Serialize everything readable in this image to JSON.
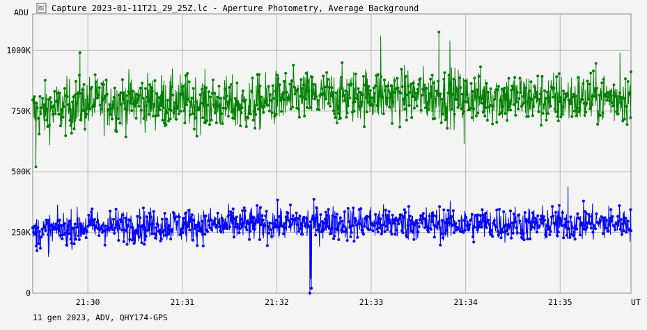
{
  "window": {
    "title": "Capture 2023-01-11T21_29_25Z.lc - Aperture Photometry, Average Background",
    "icon": "lightcurve-icon"
  },
  "footer": {
    "text": "11 gen 2023, ADV, QHY174-GPS"
  },
  "chart_data": {
    "type": "line",
    "title": "Capture 2023-01-11T21_29_25Z.lc - Aperture Photometry, Average Background",
    "ylabel": "ADU",
    "xlabel": "UT",
    "x_range_minutes": [
      "21:29:25",
      "21:35:45"
    ],
    "ylim": [
      0,
      1150000
    ],
    "y_ticks": [
      {
        "value": 0,
        "label": "0"
      },
      {
        "value": 250000,
        "label": "250K"
      },
      {
        "value": 500000,
        "label": "500K"
      },
      {
        "value": 750000,
        "label": "750K"
      },
      {
        "value": 1000000,
        "label": "1000K"
      }
    ],
    "x_ticks": [
      {
        "value": "21:30",
        "label": "21:30"
      },
      {
        "value": "21:31",
        "label": "21:31"
      },
      {
        "value": "21:32",
        "label": "21:32"
      },
      {
        "value": "21:33",
        "label": "21:33"
      },
      {
        "value": "21:34",
        "label": "21:34"
      },
      {
        "value": "21:35",
        "label": "21:35"
      }
    ],
    "grid": true,
    "series": [
      {
        "color": "#008000",
        "trend": [
          {
            "x": "21:29:25",
            "y": 740000
          },
          {
            "x": "21:30:00",
            "y": 785000
          },
          {
            "x": "21:31:00",
            "y": 790000
          },
          {
            "x": "21:31:40",
            "y": 770000
          },
          {
            "x": "21:32:00",
            "y": 800000
          },
          {
            "x": "21:33:00",
            "y": 815000
          },
          {
            "x": "21:34:00",
            "y": 810000
          },
          {
            "x": "21:35:00",
            "y": 800000
          },
          {
            "x": "21:35:45",
            "y": 805000
          }
        ],
        "noise": 55000,
        "outliers": [
          {
            "x": "21:29:27",
            "y": 520000
          },
          {
            "x": "21:29:55",
            "y": 990000
          },
          {
            "x": "21:33:06",
            "y": 1060000
          },
          {
            "x": "21:33:43",
            "y": 1075000
          },
          {
            "x": "21:33:50",
            "y": 1040000
          },
          {
            "x": "21:33:59",
            "y": 615000
          },
          {
            "x": "21:35:38",
            "y": 990000
          }
        ]
      },
      {
        "color": "#0000ff",
        "trend": [
          {
            "x": "21:29:25",
            "y": 250000
          },
          {
            "x": "21:30:00",
            "y": 275000
          },
          {
            "x": "21:31:00",
            "y": 280000
          },
          {
            "x": "21:32:00",
            "y": 285000
          },
          {
            "x": "21:33:00",
            "y": 290000
          },
          {
            "x": "21:34:00",
            "y": 285000
          },
          {
            "x": "21:35:00",
            "y": 285000
          },
          {
            "x": "21:35:45",
            "y": 290000
          }
        ],
        "noise": 35000,
        "outliers": [
          {
            "x": "21:32:21",
            "y": 0
          },
          {
            "x": "21:32:21.5",
            "y": 60000
          },
          {
            "x": "21:32:22",
            "y": 20000
          },
          {
            "x": "21:35:05",
            "y": 440000
          },
          {
            "x": "21:29:35",
            "y": 150000
          }
        ]
      }
    ]
  }
}
